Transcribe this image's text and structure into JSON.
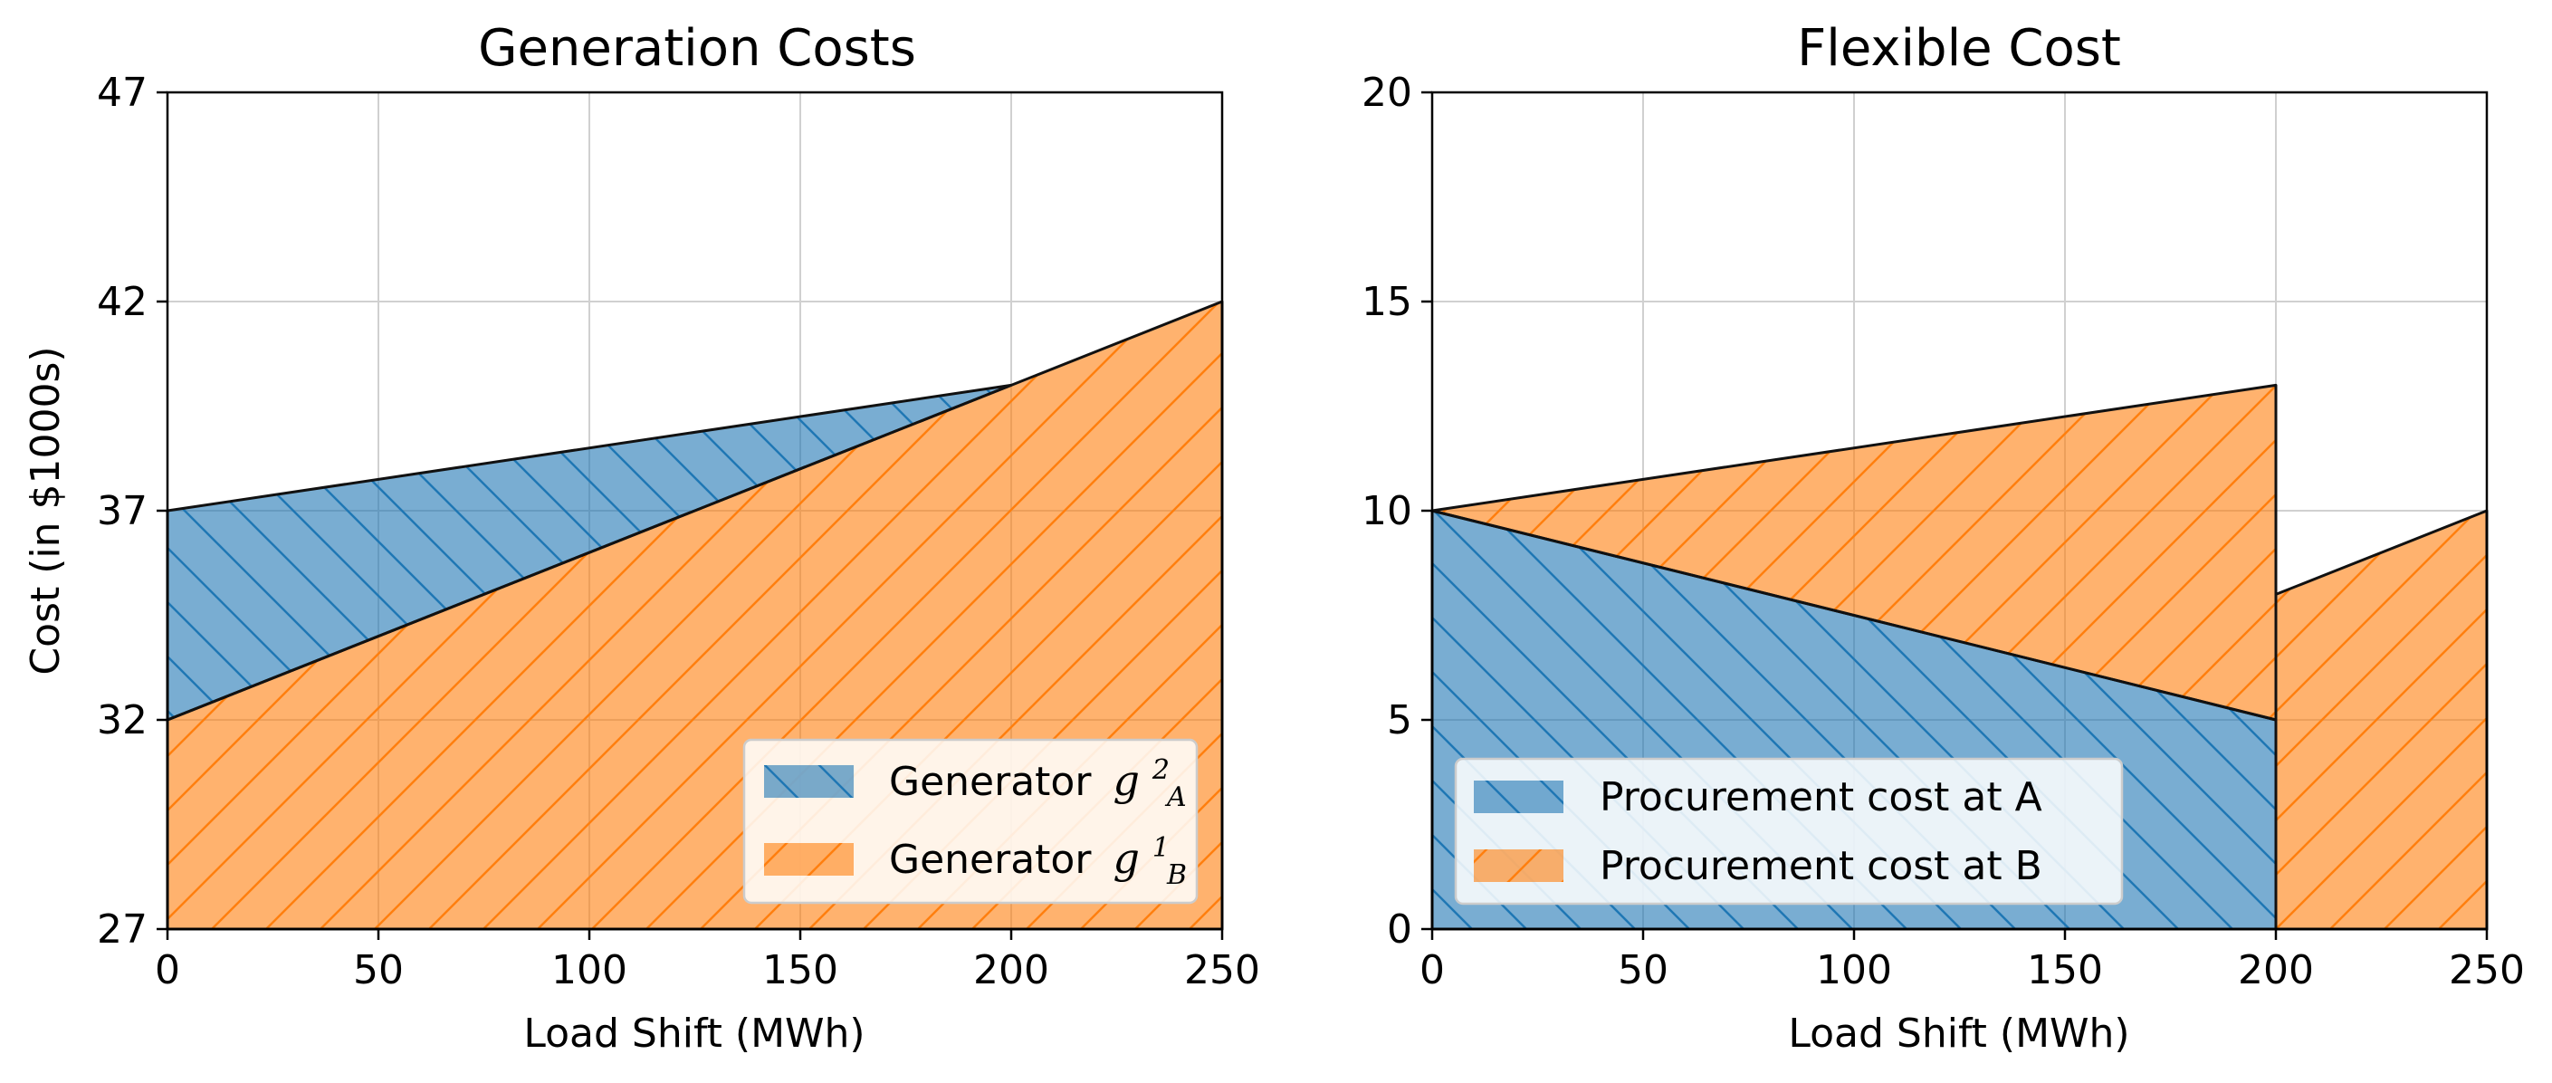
{
  "colors": {
    "blue": "#1f77b4",
    "orange": "#ff7f0e",
    "grid": "#d0d0d0",
    "axis": "#000000",
    "line": "#111111"
  },
  "chart_data": [
    {
      "type": "area",
      "title": "Generation Costs",
      "xlabel": "Load Shift (MWh)",
      "ylabel": "Cost (in $1000s)",
      "xlim": [
        0,
        250
      ],
      "ylim": [
        27,
        47
      ],
      "xticks": [
        0,
        50,
        100,
        150,
        200,
        250
      ],
      "yticks": [
        27,
        32,
        37,
        42,
        47
      ],
      "grid": true,
      "legend_position": "lower right",
      "series": [
        {
          "name": "Generator g_A^2",
          "legend_prefix": "Generator",
          "legend_symbol": "g",
          "legend_sup": "2",
          "legend_sub": "A",
          "color": "#1f77b4",
          "hatch": "\\",
          "x": [
            0,
            200
          ],
          "upper": [
            37,
            40
          ],
          "lower": [
            32,
            40
          ]
        },
        {
          "name": "Generator g_B^1",
          "legend_prefix": "Generator",
          "legend_symbol": "g",
          "legend_sup": "1",
          "legend_sub": "B",
          "color": "#ff7f0e",
          "hatch": "/",
          "x": [
            0,
            250
          ],
          "upper": [
            32,
            42
          ],
          "lower": [
            27,
            27
          ]
        }
      ]
    },
    {
      "type": "area",
      "title": "Flexible Cost",
      "xlabel": "Load Shift (MWh)",
      "ylabel": "",
      "xlim": [
        0,
        250
      ],
      "ylim": [
        0,
        20
      ],
      "xticks": [
        0,
        50,
        100,
        150,
        200,
        250
      ],
      "yticks": [
        0,
        5,
        10,
        15,
        20
      ],
      "grid": true,
      "legend_position": "lower left",
      "series": [
        {
          "name": "Procurement cost at A",
          "color": "#1f77b4",
          "hatch": "\\",
          "x": [
            0,
            200
          ],
          "upper": [
            10,
            5
          ],
          "lower": [
            0,
            0
          ]
        },
        {
          "name": "Procurement cost at B",
          "color": "#ff7f0e",
          "hatch": "/",
          "segments": [
            {
              "x": [
                0,
                200
              ],
              "upper": [
                10,
                13
              ],
              "lower": [
                10,
                5
              ]
            },
            {
              "x": [
                200,
                250
              ],
              "upper": [
                8,
                10
              ],
              "lower": [
                0,
                0
              ]
            }
          ]
        }
      ]
    }
  ]
}
